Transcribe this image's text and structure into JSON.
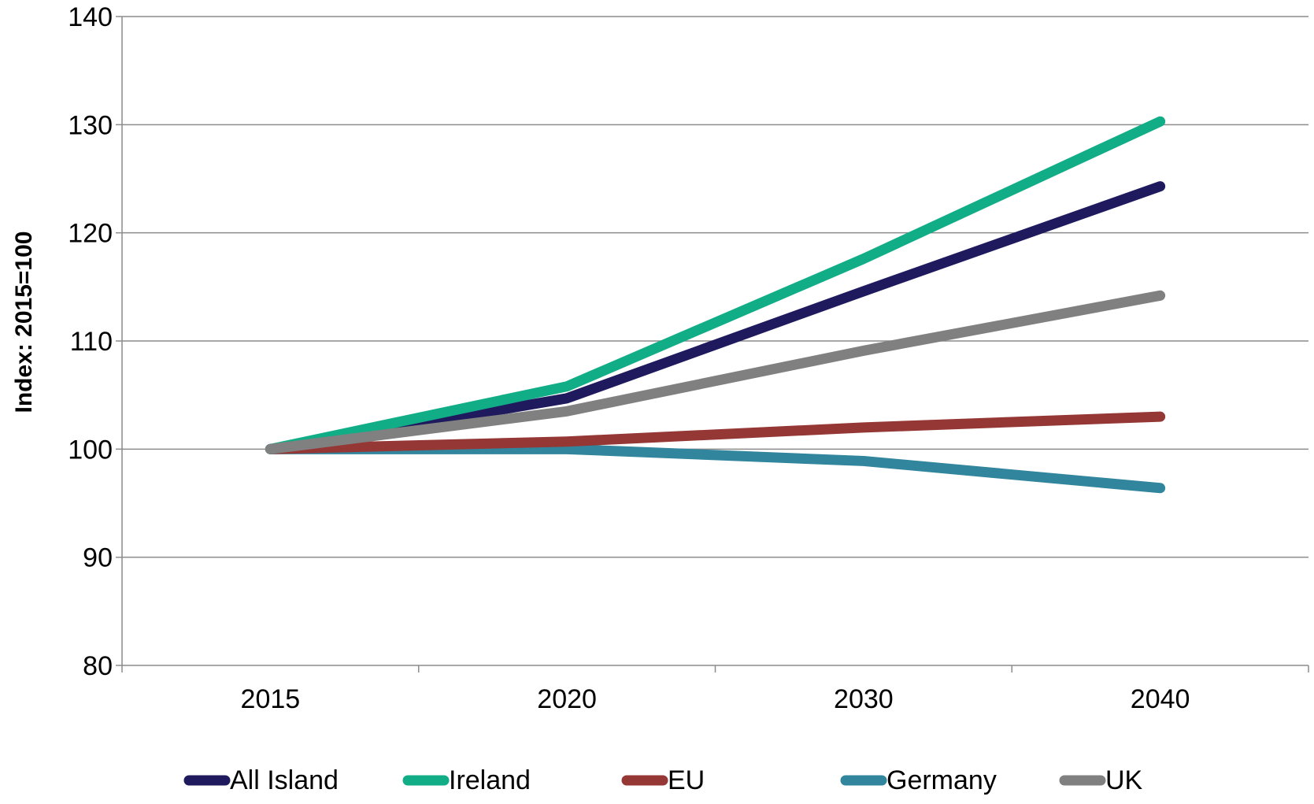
{
  "chart_data": {
    "type": "line",
    "title": "",
    "xlabel": "",
    "ylabel": "Index: 2015=100",
    "categories": [
      "2015",
      "2020",
      "2030",
      "2040"
    ],
    "ylim": [
      80,
      140
    ],
    "yticks": [
      80,
      90,
      100,
      110,
      120,
      130,
      140
    ],
    "grid": true,
    "legend_position": "bottom",
    "series": [
      {
        "name": "All Island",
        "color": "#1f1a5e",
        "values": [
          100,
          104.7,
          114.6,
          124.3
        ]
      },
      {
        "name": "Ireland",
        "color": "#10ad86",
        "values": [
          100,
          105.8,
          117.6,
          130.3
        ]
      },
      {
        "name": "EU",
        "color": "#953735",
        "values": [
          100,
          100.7,
          102.0,
          103.0
        ]
      },
      {
        "name": "Germany",
        "color": "#31859c",
        "values": [
          100,
          100.0,
          98.9,
          96.4
        ]
      },
      {
        "name": "UK",
        "color": "#808080",
        "values": [
          100,
          103.5,
          109.1,
          114.2
        ]
      }
    ]
  }
}
